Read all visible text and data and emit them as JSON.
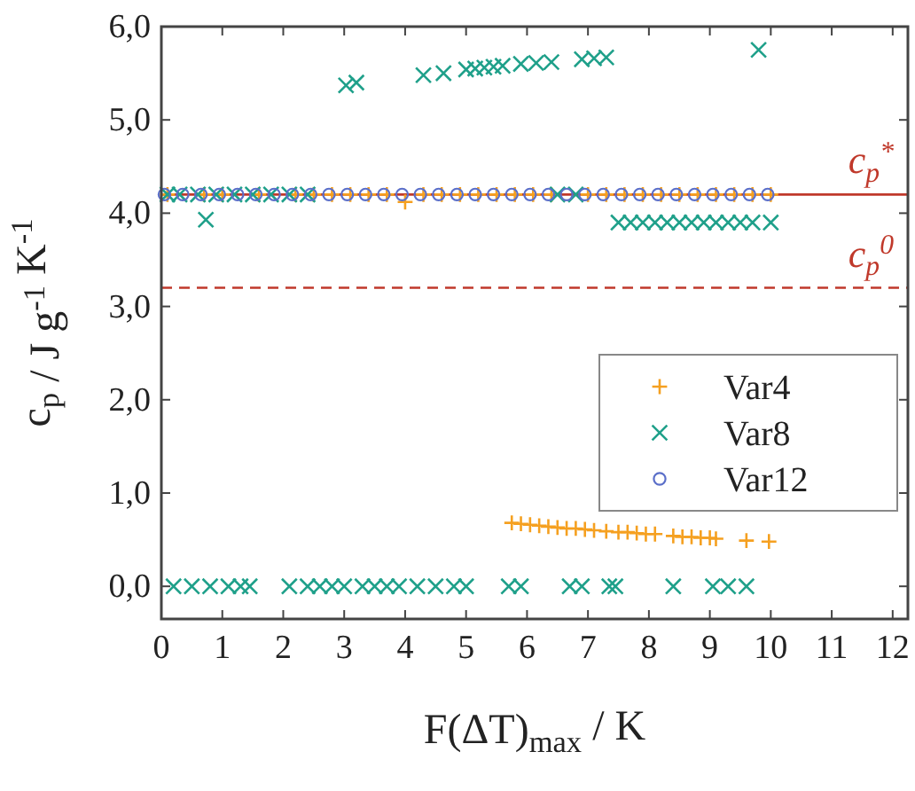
{
  "chart_data": {
    "type": "scatter",
    "xlabel": "F(ΔT)$_{max}$ / K",
    "ylabel": "c$_{p}$ / J g$^{-1}$ K$^{-1}$",
    "xlim": [
      0,
      12.25
    ],
    "ylim": [
      -0.35,
      6.0
    ],
    "xticks": [
      0,
      1,
      2,
      3,
      4,
      5,
      6,
      7,
      8,
      9,
      10,
      11,
      12
    ],
    "yticks": [
      {
        "value": 0,
        "label": "0,0"
      },
      {
        "value": 1,
        "label": "1,0"
      },
      {
        "value": 2,
        "label": "2,0"
      },
      {
        "value": 3,
        "label": "3,0"
      },
      {
        "value": 4,
        "label": "4,0"
      },
      {
        "value": 5,
        "label": "5,0"
      },
      {
        "value": 6,
        "label": "6,0"
      }
    ],
    "grid": false,
    "legend": "right",
    "ref_lines": [
      {
        "axis": "y",
        "value": 4.2,
        "label": "c$_{p}$$^{*}$",
        "color": "#c0392b",
        "line_style": "solid"
      },
      {
        "axis": "y",
        "value": 3.2,
        "label": "c$_{p}$$^{0}$",
        "color": "#c0392b",
        "line_style": "dashed"
      }
    ],
    "series": [
      {
        "name": "Var4",
        "color": "#f5a020",
        "marker": "plus",
        "x": [
          0.1,
          0.7,
          1.0,
          1.6,
          2.2,
          2.5,
          2.8,
          3.1,
          3.4,
          3.7,
          4.0,
          4.3,
          4.6,
          4.9,
          5.2,
          5.5,
          5.8,
          6.1,
          6.4,
          7.0,
          7.3,
          7.6,
          7.9,
          8.2,
          8.5,
          8.8,
          9.1,
          9.4,
          9.7,
          10.0,
          5.75,
          5.9,
          6.05,
          6.2,
          6.35,
          6.5,
          6.65,
          6.8,
          6.95,
          7.1,
          7.3,
          7.5,
          7.65,
          7.8,
          7.95,
          8.1,
          8.4,
          8.55,
          8.7,
          8.85,
          9.0,
          9.1,
          9.6,
          9.97
        ],
        "values": [
          4.2,
          4.2,
          4.2,
          4.2,
          4.2,
          4.2,
          4.2,
          4.2,
          4.2,
          4.2,
          4.12,
          4.2,
          4.2,
          4.2,
          4.2,
          4.2,
          4.2,
          4.2,
          4.2,
          4.2,
          4.2,
          4.2,
          4.2,
          4.2,
          4.2,
          4.2,
          4.2,
          4.2,
          4.2,
          4.2,
          0.68,
          0.67,
          0.66,
          0.65,
          0.64,
          0.63,
          0.62,
          0.62,
          0.61,
          0.6,
          0.59,
          0.58,
          0.58,
          0.57,
          0.56,
          0.56,
          0.54,
          0.53,
          0.53,
          0.52,
          0.52,
          0.51,
          0.49,
          0.48
        ]
      },
      {
        "name": "Var8",
        "color": "#1fa08a",
        "marker": "cross",
        "x": [
          0.1,
          0.3,
          0.6,
          0.9,
          1.2,
          1.5,
          1.8,
          2.1,
          2.4,
          0.73,
          3.03,
          3.2,
          4.3,
          4.63,
          5.0,
          5.15,
          5.3,
          5.45,
          5.6,
          5.9,
          6.15,
          6.4,
          6.9,
          7.1,
          7.3,
          9.8,
          6.5,
          6.8,
          7.5,
          7.7,
          7.9,
          8.1,
          8.3,
          8.5,
          8.7,
          8.9,
          9.1,
          9.3,
          9.5,
          9.7,
          10.0,
          0.2,
          0.5,
          0.8,
          1.1,
          1.3,
          1.45,
          2.1,
          2.4,
          2.6,
          2.8,
          3.0,
          3.3,
          3.5,
          3.7,
          3.9,
          4.2,
          4.5,
          4.8,
          5.0,
          5.7,
          5.9,
          6.7,
          6.9,
          7.35,
          7.45,
          8.4,
          9.05,
          9.3,
          9.6
        ],
        "values": [
          4.2,
          4.2,
          4.2,
          4.2,
          4.2,
          4.2,
          4.2,
          4.2,
          4.2,
          3.93,
          5.37,
          5.4,
          5.48,
          5.5,
          5.54,
          5.55,
          5.56,
          5.57,
          5.58,
          5.6,
          5.61,
          5.62,
          5.65,
          5.66,
          5.67,
          5.75,
          4.2,
          4.2,
          3.9,
          3.9,
          3.9,
          3.9,
          3.9,
          3.9,
          3.9,
          3.9,
          3.9,
          3.9,
          3.9,
          3.9,
          3.9,
          0,
          0,
          0,
          0,
          0,
          0,
          0,
          0,
          0,
          0,
          0,
          0,
          0,
          0,
          0,
          0,
          0,
          0,
          0,
          0,
          0,
          0,
          0,
          0,
          0,
          0,
          0,
          0,
          0
        ]
      },
      {
        "name": "Var12",
        "color": "#5b6fc9",
        "marker": "circle",
        "x": [
          0.05,
          0.35,
          0.65,
          0.95,
          1.25,
          1.55,
          1.85,
          2.15,
          2.45,
          2.75,
          3.05,
          3.35,
          3.65,
          3.95,
          4.25,
          4.55,
          4.85,
          5.15,
          5.45,
          5.75,
          6.05,
          6.35,
          6.65,
          6.95,
          7.25,
          7.55,
          7.85,
          8.15,
          8.45,
          8.75,
          9.05,
          9.35,
          9.65,
          9.95
        ],
        "values": [
          4.2,
          4.2,
          4.2,
          4.2,
          4.2,
          4.2,
          4.2,
          4.2,
          4.2,
          4.2,
          4.2,
          4.2,
          4.2,
          4.2,
          4.2,
          4.2,
          4.2,
          4.2,
          4.2,
          4.2,
          4.2,
          4.2,
          4.2,
          4.2,
          4.2,
          4.2,
          4.2,
          4.2,
          4.2,
          4.2,
          4.2,
          4.2,
          4.2,
          4.2
        ]
      }
    ]
  }
}
